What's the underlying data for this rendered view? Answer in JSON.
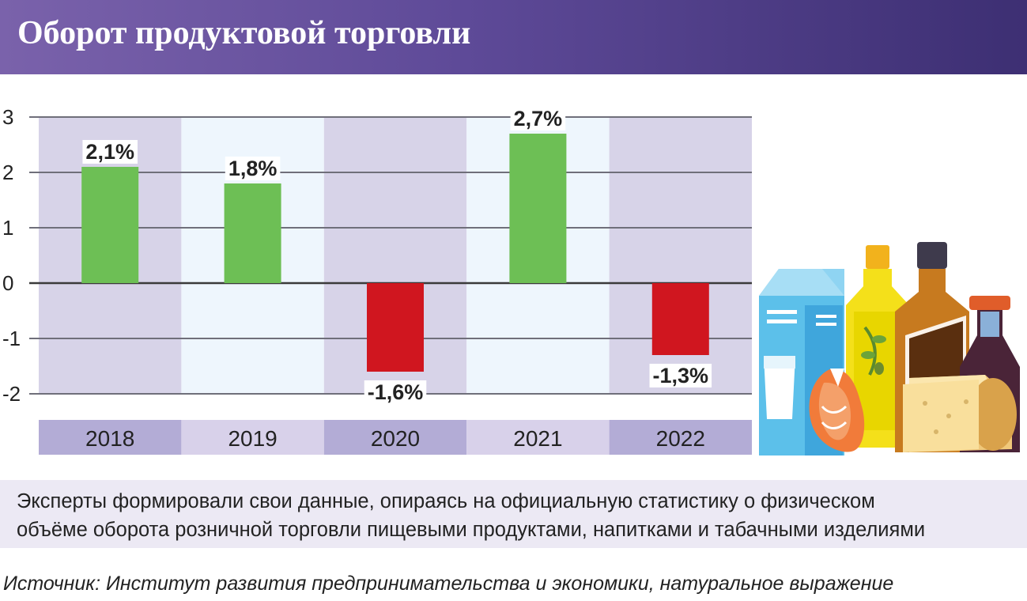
{
  "title": "Оборот продуктовой торговли",
  "note_lines": [
    "Эксперты формировали свои данные, опираясь на официальную статистику о физическом",
    "объёме оборота розничной торговли пищевыми продуктами, напитками и табачными изделиями"
  ],
  "source": "Источник: Институт развития предпринимательства и экономики, натуральное выражение",
  "colors": {
    "positive": "#6dbf55",
    "negative": "#d0161f",
    "header": "#5e4a98",
    "band_dark": "#d7d3e8",
    "band_light": "#eef6fd"
  },
  "chart_data": {
    "type": "bar",
    "title": "Оборот продуктовой торговли",
    "categories": [
      "2018",
      "2019",
      "2020",
      "2021",
      "2022"
    ],
    "values": [
      2.1,
      1.8,
      -1.6,
      2.7,
      -1.3
    ],
    "value_labels": [
      "2,1%",
      "1,8%",
      "-1,6%",
      "2,7%",
      "-1,3%"
    ],
    "y_ticks": [
      "3",
      "2",
      "1",
      "0",
      "-1",
      "-2"
    ],
    "ylim": [
      -2,
      3
    ],
    "xlabel": "",
    "ylabel": "",
    "grid": true
  },
  "illustration": "food-products-illustration"
}
